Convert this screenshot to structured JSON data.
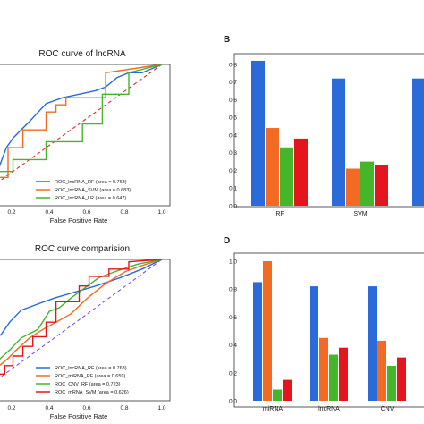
{
  "colors": {
    "blue": "#2a6ad9",
    "orange": "#f36a24",
    "green": "#45b529",
    "red": "#e5151d",
    "purple": "#6e3ee6"
  },
  "panels": [
    {
      "id": "A-roc-lncrna",
      "label": "",
      "type": "line",
      "title": "ROC curve of lncRNA",
      "xlabel": "False Positive Rate",
      "xticks": [
        "0.2",
        "0.4",
        "0.6",
        "0.8",
        "1.0"
      ]
    },
    {
      "id": "B-bar-lncrna",
      "label": "B",
      "type": "bar"
    },
    {
      "id": "C-roc-comparison",
      "label": "",
      "type": "line",
      "title": "ROC curve comparision",
      "xlabel": "False Positive Rate",
      "xticks": [
        "0.2",
        "0.4",
        "0.6",
        "0.8",
        "1.0"
      ]
    },
    {
      "id": "D-bar-comparison",
      "label": "D",
      "type": "bar"
    }
  ],
  "chart_data": [
    {
      "type": "line",
      "title": "ROC curve of lncRNA",
      "xlabel": "False Positive Rate",
      "ylabel": "",
      "xlim": [
        0,
        1
      ],
      "ylim": [
        0,
        1
      ],
      "diagonal": {
        "color": "#e5151d",
        "dash": "dashed"
      },
      "legend": "bottom-right",
      "series": [
        {
          "name": "ROC_lncRNA_RF (area = 0.763)",
          "color": "#2a6ad9",
          "x": [
            0,
            0.02,
            0.06,
            0.1,
            0.2,
            0.3,
            0.4,
            0.5,
            0.6,
            0.66,
            0.73,
            0.8,
            0.88,
            0.95,
            1.0
          ],
          "y": [
            0.08,
            0.15,
            0.3,
            0.38,
            0.52,
            0.67,
            0.72,
            0.75,
            0.78,
            0.81,
            0.89,
            0.93,
            0.93,
            0.97,
            1.0
          ]
        },
        {
          "name": "ROC_lncRNA_SVM (area = 0.683)",
          "color": "#f36a24",
          "x": [
            0,
            0.07,
            0.07,
            0.16,
            0.16,
            0.3,
            0.3,
            0.36,
            0.36,
            0.42,
            0.42,
            0.66,
            0.66,
            1.0
          ],
          "y": [
            0.05,
            0.05,
            0.3,
            0.3,
            0.45,
            0.45,
            0.6,
            0.6,
            0.66,
            0.66,
            0.72,
            0.72,
            0.93,
            1.0
          ]
        },
        {
          "name": "ROC_lncRNA_LR (area = 0.647)",
          "color": "#45b529",
          "x": [
            0,
            0.1,
            0.1,
            0.3,
            0.3,
            0.52,
            0.52,
            0.64,
            0.64,
            0.8,
            0.8,
            1.0
          ],
          "y": [
            0.1,
            0.1,
            0.2,
            0.2,
            0.35,
            0.35,
            0.5,
            0.5,
            0.75,
            0.75,
            0.93,
            1.0
          ]
        }
      ]
    },
    {
      "type": "bar",
      "title": "",
      "ylim": [
        0,
        0.85
      ],
      "yticks": [
        0,
        0.1,
        0.2,
        0.3,
        0.4,
        0.5,
        0.6,
        0.7,
        0.8
      ],
      "categories": [
        "RF",
        "SVM",
        ""
      ],
      "series": [
        {
          "color": "#2a6ad9",
          "values": [
            0.82,
            0.72,
            0.72
          ]
        },
        {
          "color": "#f36a24",
          "values": [
            0.44,
            0.21,
            null
          ]
        },
        {
          "color": "#45b529",
          "values": [
            0.33,
            0.25,
            null
          ]
        },
        {
          "color": "#e5151d",
          "values": [
            0.38,
            0.23,
            null
          ]
        }
      ]
    },
    {
      "type": "line",
      "title": "ROC curve comparision",
      "xlabel": "False Positive Rate",
      "ylabel": "",
      "xlim": [
        0,
        1
      ],
      "ylim": [
        0,
        1
      ],
      "diagonal": {
        "color": "#6e3ee6",
        "dash": "dashed"
      },
      "legend": "bottom-right",
      "series": [
        {
          "name": "ROC_lncRNA_RF (area = 0.763)",
          "color": "#2a6ad9",
          "x": [
            0,
            0.03,
            0.08,
            0.15,
            0.25,
            0.35,
            0.45,
            0.6,
            0.75,
            0.88,
            1.0
          ],
          "y": [
            0.35,
            0.38,
            0.48,
            0.58,
            0.63,
            0.68,
            0.72,
            0.78,
            0.85,
            0.92,
            1.0
          ]
        },
        {
          "name": "ROC_miRNA_RF (area = 0.659)",
          "color": "#f36a24",
          "x": [
            0,
            0.07,
            0.12,
            0.2,
            0.28,
            0.36,
            0.45,
            0.55,
            0.66,
            0.78,
            0.88,
            1.0
          ],
          "y": [
            0.1,
            0.18,
            0.25,
            0.35,
            0.42,
            0.48,
            0.55,
            0.68,
            0.8,
            0.9,
            0.95,
            1.0
          ]
        },
        {
          "name": "ROC_CNV_RF (area = 0.723)",
          "color": "#45b529",
          "x": [
            0,
            0.08,
            0.15,
            0.25,
            0.32,
            0.38,
            0.45,
            0.55,
            0.62,
            0.72,
            0.85,
            1.0
          ],
          "y": [
            0.15,
            0.25,
            0.35,
            0.42,
            0.57,
            0.6,
            0.68,
            0.78,
            0.85,
            0.9,
            0.96,
            1.0
          ]
        },
        {
          "name": "ROC_mRNA_SVM (area = 0.626)",
          "color": "#e5151d",
          "x": [
            0,
            0.05,
            0.05,
            0.1,
            0.1,
            0.16,
            0.16,
            0.22,
            0.22,
            0.3,
            0.3,
            0.36,
            0.36,
            0.5,
            0.5,
            0.56,
            0.56,
            0.68,
            0.68,
            0.8,
            0.8,
            1.0
          ],
          "y": [
            0.05,
            0.05,
            0.12,
            0.12,
            0.2,
            0.2,
            0.28,
            0.28,
            0.36,
            0.36,
            0.48,
            0.48,
            0.65,
            0.65,
            0.78,
            0.78,
            0.86,
            0.86,
            0.92,
            0.92,
            0.98,
            1.0
          ]
        }
      ]
    },
    {
      "type": "bar",
      "title": "",
      "ylim": [
        0,
        1.0
      ],
      "yticks": [
        0,
        0.2,
        0.4,
        0.6,
        0.8,
        1.0
      ],
      "categories": [
        "miRNA",
        "lncRNA",
        "CNV"
      ],
      "series": [
        {
          "color": "#2a6ad9",
          "values": [
            0.85,
            0.82,
            0.82
          ]
        },
        {
          "color": "#f36a24",
          "values": [
            1.0,
            0.45,
            0.43
          ]
        },
        {
          "color": "#45b529",
          "values": [
            0.08,
            0.33,
            0.25
          ]
        },
        {
          "color": "#e5151d",
          "values": [
            0.15,
            0.38,
            0.31
          ]
        }
      ]
    }
  ]
}
